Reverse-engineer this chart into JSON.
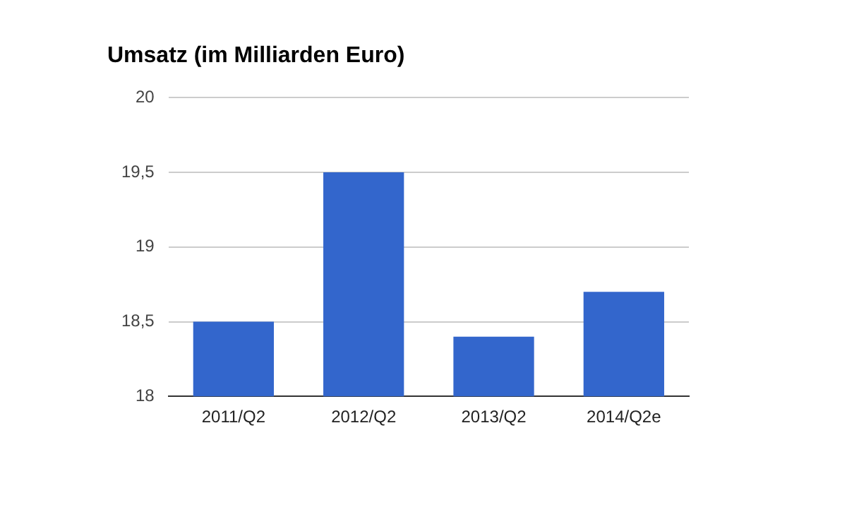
{
  "chart_data": {
    "type": "bar",
    "title": "Umsatz (im Milliarden Euro)",
    "categories": [
      "2011/Q2",
      "2012/Q2",
      "2013/Q2",
      "2014/Q2e"
    ],
    "values": [
      18.5,
      19.5,
      18.4,
      18.7
    ],
    "color": "#3366cc",
    "ylim": [
      18,
      20
    ],
    "yticks": [
      18,
      {
        "value": 18.5,
        "label": "18,5"
      },
      19,
      {
        "value": 19.5,
        "label": "19,5"
      },
      20
    ],
    "grid": "y",
    "legend": false
  }
}
